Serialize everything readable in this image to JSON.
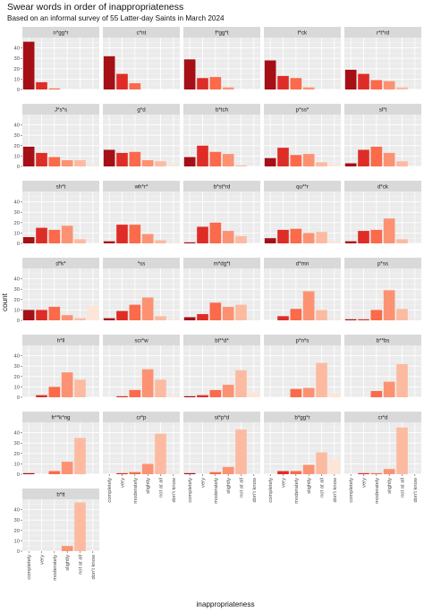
{
  "title": "Swear words in order of inappropriateness",
  "subtitle": "Based on an informal survey of 55 Latter-day Saints in March 2024",
  "chart_data": {
    "type": "bar",
    "facet": "wrap",
    "categories": [
      "completely",
      "very",
      "moderately",
      "slightly",
      "not at all",
      "don't know"
    ],
    "xlabel": "inappropriateness",
    "ylabel": "count",
    "ylim": [
      0,
      50
    ],
    "yticks": [
      0,
      10,
      20,
      30,
      40
    ],
    "grid": true,
    "colors": [
      "#a50f15",
      "#de2d26",
      "#fb6a4a",
      "#fc9272",
      "#fcbba1",
      "#fee5d9"
    ],
    "panels": [
      {
        "name": "n*gg*r",
        "values": [
          46,
          7,
          1,
          0,
          0,
          0
        ]
      },
      {
        "name": "c*nt",
        "values": [
          32,
          15,
          6,
          0,
          0,
          0
        ]
      },
      {
        "name": "f*gg*t",
        "values": [
          29,
          11,
          12,
          2,
          0,
          0
        ]
      },
      {
        "name": "f*ck",
        "values": [
          28,
          13,
          11,
          2,
          0,
          0
        ]
      },
      {
        "name": "r*t*rd",
        "values": [
          19,
          15,
          9,
          8,
          2,
          0
        ]
      },
      {
        "name": "J*s*s",
        "values": [
          19,
          13,
          9,
          6,
          6,
          1
        ]
      },
      {
        "name": "g*d",
        "values": [
          16,
          13,
          14,
          6,
          5,
          2
        ]
      },
      {
        "name": "b*tch",
        "values": [
          9,
          20,
          14,
          12,
          1,
          0
        ]
      },
      {
        "name": "p*ss*",
        "values": [
          8,
          18,
          11,
          12,
          4,
          2
        ]
      },
      {
        "name": "sl*t",
        "values": [
          3,
          16,
          19,
          13,
          5,
          0
        ]
      },
      {
        "name": "sh*t",
        "values": [
          6,
          15,
          13,
          17,
          4,
          0
        ]
      },
      {
        "name": "wh*r*",
        "values": [
          2,
          18,
          18,
          9,
          3,
          1
        ]
      },
      {
        "name": "b*st*rd",
        "values": [
          1,
          16,
          20,
          12,
          7,
          0
        ]
      },
      {
        "name": "qu**r",
        "values": [
          5,
          13,
          14,
          10,
          11,
          2
        ]
      },
      {
        "name": "d*ck",
        "values": [
          2,
          12,
          13,
          24,
          4,
          0
        ]
      },
      {
        "name": "d*k*",
        "values": [
          10,
          10,
          13,
          5,
          2,
          14
        ]
      },
      {
        "name": "*ss",
        "values": [
          2,
          9,
          15,
          22,
          4,
          1
        ]
      },
      {
        "name": "m*dg*t",
        "values": [
          3,
          6,
          17,
          13,
          15,
          1
        ]
      },
      {
        "name": "d*mn",
        "values": [
          0,
          4,
          11,
          28,
          10,
          1
        ]
      },
      {
        "name": "p*ss",
        "values": [
          1,
          1,
          10,
          29,
          11,
          1
        ]
      },
      {
        "name": "h*ll",
        "values": [
          0,
          2,
          10,
          24,
          17,
          0
        ]
      },
      {
        "name": "scr*w",
        "values": [
          0,
          1,
          7,
          27,
          17,
          1
        ]
      },
      {
        "name": "bl**d*",
        "values": [
          1,
          2,
          7,
          12,
          26,
          5
        ]
      },
      {
        "name": "p*n*s",
        "values": [
          0,
          0,
          8,
          9,
          33,
          4
        ]
      },
      {
        "name": "b**bs",
        "values": [
          0,
          0,
          6,
          15,
          32,
          0
        ]
      },
      {
        "name": "fr**k*ng",
        "values": [
          1,
          0,
          3,
          12,
          35,
          0
        ]
      },
      {
        "name": "cr*p",
        "values": [
          0,
          1,
          2,
          10,
          39,
          1
        ]
      },
      {
        "name": "st*p*d",
        "values": [
          1,
          0,
          2,
          7,
          43,
          0
        ]
      },
      {
        "name": "b*gg*r",
        "values": [
          0,
          3,
          3,
          9,
          21,
          15
        ]
      },
      {
        "name": "cr*d",
        "values": [
          0,
          1,
          1,
          5,
          45,
          0
        ]
      },
      {
        "name": "b*tt",
        "values": [
          0,
          0,
          0,
          5,
          47,
          0
        ]
      }
    ]
  }
}
